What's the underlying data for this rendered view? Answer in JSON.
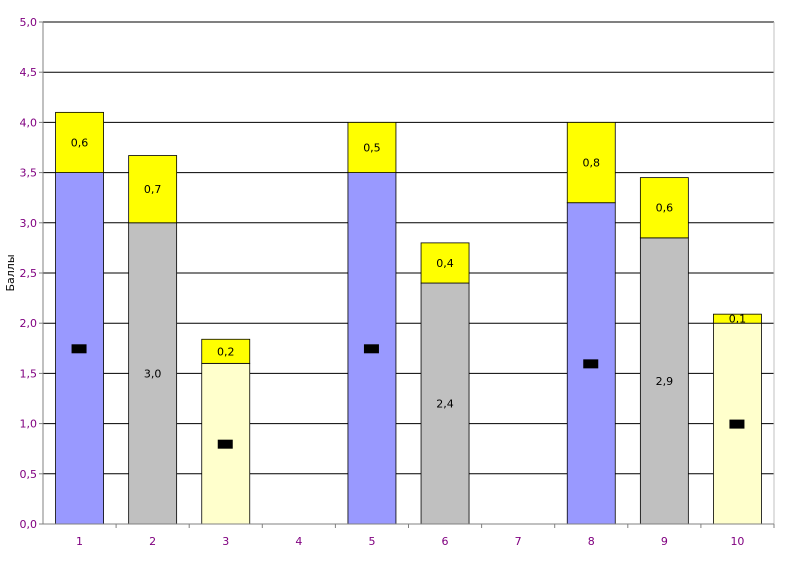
{
  "chart_data": {
    "type": "bar",
    "stacked": true,
    "ylabel": "Баллы",
    "xlabel": "",
    "ylim": [
      0,
      5
    ],
    "y_tick_labels": [
      "0,0",
      "0,5",
      "1,0",
      "1,5",
      "2,0",
      "2,5",
      "3,0",
      "3,5",
      "4,0",
      "4,5",
      "5,0"
    ],
    "categories": [
      "1",
      "2",
      "3",
      "4",
      "5",
      "6",
      "7",
      "8",
      "9",
      "10"
    ],
    "grid": true,
    "series": [
      {
        "values": [
          3.5,
          3.0,
          1.6,
          null,
          3.5,
          2.4,
          null,
          3.2,
          2.85,
          2.0
        ],
        "labels": [
          "",
          "3,0",
          "",
          "",
          "",
          "2,4",
          "",
          "",
          "2,9",
          ""
        ]
      },
      {
        "values": [
          0.6,
          0.67,
          0.24,
          null,
          0.5,
          0.4,
          null,
          0.8,
          0.6,
          0.09
        ],
        "labels": [
          "0,6",
          "0,7",
          "0,2",
          "",
          "0,5",
          "0,4",
          "",
          "0,8",
          "0,6",
          "0,1"
        ]
      }
    ],
    "base_colors": [
      "#9999ff",
      "#c0c0c0",
      "#ffffcc",
      null,
      "#9999ff",
      "#c0c0c0",
      null,
      "#9999ff",
      "#c0c0c0",
      "#ffffcc"
    ],
    "top_color": "#ffff00",
    "markers": [
      1.75,
      null,
      0.8,
      null,
      1.75,
      null,
      null,
      1.6,
      null,
      1.0
    ]
  }
}
